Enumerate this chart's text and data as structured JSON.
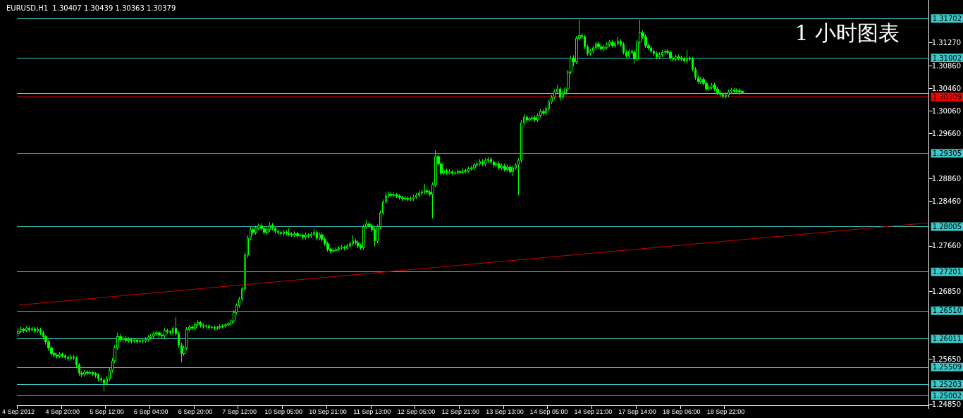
{
  "chart_data": {
    "type": "candlestick",
    "title": "EURUSD,H1  1.30407 1.30439 1.30363 1.30379",
    "annotations": [
      "1 小时图表"
    ],
    "categories": [
      "4 Sep 2012",
      null,
      null,
      null,
      null,
      null,
      null,
      null,
      null,
      null,
      null,
      null,
      null,
      null,
      null,
      null,
      "4 Sep 20:00",
      null,
      null,
      null,
      null,
      null,
      null,
      null,
      null,
      null,
      null,
      null,
      null,
      null,
      null,
      null,
      "5 Sep 12:00",
      null,
      null,
      null,
      null,
      null,
      null,
      null,
      null,
      null,
      null,
      null,
      null,
      null,
      null,
      null,
      "6 Sep 04:00",
      null,
      null,
      null,
      null,
      null,
      null,
      null,
      null,
      null,
      null,
      null,
      null,
      null,
      null,
      null,
      "6 Sep 20:00",
      null,
      null,
      null,
      null,
      null,
      null,
      null,
      null,
      null,
      null,
      null,
      null,
      null,
      null,
      null,
      "7 Sep 12:00",
      null,
      null,
      null,
      null,
      null,
      null,
      null,
      null,
      null,
      null,
      null,
      null,
      null,
      null,
      null,
      "10 Sep 05:00",
      null,
      null,
      null,
      null,
      null,
      null,
      null,
      null,
      null,
      null,
      null,
      null,
      null,
      null,
      null,
      "10 Sep 21:00",
      null,
      null,
      null,
      null,
      null,
      null,
      null,
      null,
      null,
      null,
      null,
      null,
      null,
      null,
      null,
      "11 Sep 13:00",
      null,
      null,
      null,
      null,
      null,
      null,
      null,
      null,
      null,
      null,
      null,
      null,
      null,
      null,
      null,
      "12 Sep 05:00",
      null,
      null,
      null,
      null,
      null,
      null,
      null,
      null,
      null,
      null,
      null,
      null,
      null,
      null,
      null,
      "12 Sep 21:00",
      null,
      null,
      null,
      null,
      null,
      null,
      null,
      null,
      null,
      null,
      null,
      null,
      null,
      null,
      null,
      "13 Sep 13:00",
      null,
      null,
      null,
      null,
      null,
      null,
      null,
      null,
      null,
      null,
      null,
      null,
      null,
      null,
      null,
      "14 Sep 05:00",
      null,
      null,
      null,
      null,
      null,
      null,
      null,
      null,
      null,
      null,
      null,
      null,
      null,
      null,
      null,
      "14 Sep 21:00",
      null,
      null,
      null,
      null,
      null,
      null,
      null,
      null,
      null,
      null,
      null,
      null,
      null,
      null,
      null,
      "17 Sep 14:00",
      null,
      null,
      null,
      null,
      null,
      null,
      null,
      null,
      null,
      null,
      null,
      null,
      null,
      null,
      null,
      "18 Sep 06:00",
      null,
      null,
      null,
      null,
      null,
      null,
      null,
      null,
      null,
      null,
      null,
      null,
      null,
      null,
      null,
      "18 Sep 22:00",
      null,
      null,
      null,
      null,
      null,
      null,
      null,
      null,
      null,
      null,
      null,
      null,
      null,
      null,
      null,
      null,
      null,
      null,
      null,
      null,
      null,
      null,
      null,
      null,
      null,
      null,
      null,
      null,
      null,
      null,
      null,
      null,
      null,
      null,
      null,
      null,
      null,
      null,
      null,
      null,
      null,
      null,
      null,
      null,
      null,
      null,
      null,
      null,
      null,
      null,
      null,
      null,
      null,
      null,
      null,
      null,
      null,
      null,
      null,
      null,
      null,
      null,
      null,
      null,
      null,
      null,
      null,
      null,
      null,
      null,
      null,
      null,
      null
    ],
    "ohlc": [
      [
        1.261,
        1.262,
        1.2605,
        1.2614
      ],
      [
        1.2614,
        1.2623,
        1.2611,
        1.2618
      ],
      [
        1.2618,
        1.2621,
        1.2612,
        1.2616
      ],
      [
        1.2616,
        1.2624,
        1.2613,
        1.262
      ],
      [
        1.262,
        1.2623,
        1.2613,
        1.2617
      ],
      [
        1.2617,
        1.2623,
        1.2614,
        1.2619
      ],
      [
        1.2619,
        1.2622,
        1.2611,
        1.2615
      ],
      [
        1.2615,
        1.2622,
        1.2612,
        1.2618
      ],
      [
        1.2618,
        1.2621,
        1.2608,
        1.2612
      ],
      [
        1.2612,
        1.2615,
        1.26,
        1.2605
      ],
      [
        1.2605,
        1.2608,
        1.2591,
        1.2596
      ],
      [
        1.2596,
        1.2599,
        1.258,
        1.2585
      ],
      [
        1.2585,
        1.2588,
        1.257,
        1.2575
      ],
      [
        1.2575,
        1.2578,
        1.2567,
        1.2572
      ],
      [
        1.2572,
        1.2575,
        1.2566,
        1.257
      ],
      [
        1.257,
        1.2578,
        1.2567,
        1.2574
      ],
      [
        1.2574,
        1.2577,
        1.2567,
        1.2571
      ],
      [
        1.2571,
        1.2574,
        1.2564,
        1.2568
      ],
      [
        1.2568,
        1.2571,
        1.2562,
        1.2566
      ],
      [
        1.2566,
        1.2573,
        1.2563,
        1.2569
      ],
      [
        1.2569,
        1.2572,
        1.2563,
        1.2567
      ],
      [
        1.2567,
        1.257,
        1.255,
        1.2555
      ],
      [
        1.2555,
        1.2558,
        1.2535,
        1.254
      ],
      [
        1.254,
        1.2544,
        1.2533,
        1.2538
      ],
      [
        1.2538,
        1.2546,
        1.2534,
        1.2542
      ],
      [
        1.2542,
        1.2546,
        1.2536,
        1.254
      ],
      [
        1.254,
        1.2545,
        1.2537,
        1.2541
      ],
      [
        1.2541,
        1.2544,
        1.2535,
        1.2539
      ],
      [
        1.2539,
        1.2542,
        1.2532,
        1.2537
      ],
      [
        1.2537,
        1.254,
        1.2525,
        1.253
      ],
      [
        1.253,
        1.2534,
        1.2523,
        1.2528
      ],
      [
        1.2528,
        1.2531,
        1.2508,
        1.2522
      ],
      [
        1.2522,
        1.2535,
        1.2518,
        1.253
      ],
      [
        1.253,
        1.255,
        1.2526,
        1.2545
      ],
      [
        1.2545,
        1.2567,
        1.2541,
        1.2562
      ],
      [
        1.2562,
        1.259,
        1.2558,
        1.2585
      ],
      [
        1.2585,
        1.2612,
        1.2581,
        1.2605
      ],
      [
        1.2605,
        1.261,
        1.2596,
        1.26
      ],
      [
        1.26,
        1.2606,
        1.2596,
        1.2602
      ],
      [
        1.2602,
        1.2606,
        1.2594,
        1.2598
      ],
      [
        1.2598,
        1.2604,
        1.2594,
        1.26
      ],
      [
        1.26,
        1.2603,
        1.2593,
        1.2597
      ],
      [
        1.2597,
        1.2603,
        1.2594,
        1.2599
      ],
      [
        1.2599,
        1.2602,
        1.2592,
        1.2596
      ],
      [
        1.2596,
        1.2602,
        1.2593,
        1.2598
      ],
      [
        1.2598,
        1.2601,
        1.2593,
        1.2597
      ],
      [
        1.2597,
        1.2604,
        1.2594,
        1.26
      ],
      [
        1.26,
        1.2608,
        1.2596,
        1.2604
      ],
      [
        1.2604,
        1.261,
        1.26,
        1.2606
      ],
      [
        1.2606,
        1.2614,
        1.2602,
        1.261
      ],
      [
        1.261,
        1.2616,
        1.2606,
        1.2612
      ],
      [
        1.2612,
        1.2615,
        1.2604,
        1.2608
      ],
      [
        1.2608,
        1.2611,
        1.2602,
        1.2606
      ],
      [
        1.2606,
        1.262,
        1.2602,
        1.2616
      ],
      [
        1.2616,
        1.2619,
        1.261,
        1.2614
      ],
      [
        1.2614,
        1.2617,
        1.2608,
        1.2612
      ],
      [
        1.2612,
        1.2624,
        1.2608,
        1.262
      ],
      [
        1.262,
        1.264,
        1.2606,
        1.261
      ],
      [
        1.261,
        1.2614,
        1.2585,
        1.259
      ],
      [
        1.259,
        1.2594,
        1.2559,
        1.2575
      ],
      [
        1.2575,
        1.2589,
        1.2571,
        1.2585
      ],
      [
        1.2585,
        1.2622,
        1.2581,
        1.2618
      ],
      [
        1.2618,
        1.2626,
        1.2614,
        1.2622
      ],
      [
        1.2622,
        1.2625,
        1.2616,
        1.262
      ],
      [
        1.262,
        1.2631,
        1.2616,
        1.2627
      ],
      [
        1.2627,
        1.2634,
        1.2623,
        1.263
      ],
      [
        1.263,
        1.2633,
        1.2621,
        1.2625
      ],
      [
        1.2625,
        1.2628,
        1.2619,
        1.2623
      ],
      [
        1.2623,
        1.2627,
        1.262,
        1.2624
      ],
      [
        1.2624,
        1.2627,
        1.2617,
        1.2621
      ],
      [
        1.2621,
        1.2625,
        1.2618,
        1.2622
      ],
      [
        1.2622,
        1.2625,
        1.2616,
        1.262
      ],
      [
        1.262,
        1.2624,
        1.2617,
        1.2621
      ],
      [
        1.2621,
        1.2627,
        1.2618,
        1.2623
      ],
      [
        1.2623,
        1.2627,
        1.262,
        1.2624
      ],
      [
        1.2624,
        1.2629,
        1.2621,
        1.2626
      ],
      [
        1.2626,
        1.2631,
        1.2623,
        1.2628
      ],
      [
        1.2628,
        1.2636,
        1.2624,
        1.2633
      ],
      [
        1.2633,
        1.2652,
        1.2629,
        1.2648
      ],
      [
        1.2648,
        1.2664,
        1.2644,
        1.266
      ],
      [
        1.266,
        1.2676,
        1.2656,
        1.2672
      ],
      [
        1.2672,
        1.2694,
        1.2668,
        1.269
      ],
      [
        1.269,
        1.2755,
        1.2686,
        1.275
      ],
      [
        1.275,
        1.2785,
        1.2745,
        1.278
      ],
      [
        1.278,
        1.28,
        1.2776,
        1.2795
      ],
      [
        1.2795,
        1.2799,
        1.2785,
        1.279
      ],
      [
        1.279,
        1.2802,
        1.2786,
        1.2798
      ],
      [
        1.2798,
        1.2806,
        1.2794,
        1.2802
      ],
      [
        1.2802,
        1.2806,
        1.2793,
        1.2797
      ],
      [
        1.2797,
        1.28,
        1.2786,
        1.279
      ],
      [
        1.279,
        1.2799,
        1.2786,
        1.2795
      ],
      [
        1.2795,
        1.2808,
        1.2791,
        1.2803
      ],
      [
        1.2803,
        1.2807,
        1.2794,
        1.2798
      ],
      [
        1.2798,
        1.2801,
        1.2788,
        1.2792
      ],
      [
        1.2792,
        1.2795,
        1.2786,
        1.279
      ],
      [
        1.279,
        1.2793,
        1.2784,
        1.2788
      ],
      [
        1.2788,
        1.2795,
        1.2784,
        1.2791
      ],
      [
        1.2791,
        1.2794,
        1.2785,
        1.2789
      ],
      [
        1.2789,
        1.2797,
        1.2783,
        1.2787
      ],
      [
        1.2787,
        1.279,
        1.2782,
        1.2786
      ],
      [
        1.2786,
        1.2792,
        1.2782,
        1.2788
      ],
      [
        1.2788,
        1.2791,
        1.278,
        1.2784
      ],
      [
        1.2784,
        1.2789,
        1.278,
        1.2785
      ],
      [
        1.2785,
        1.2788,
        1.2778,
        1.2782
      ],
      [
        1.2782,
        1.279,
        1.2778,
        1.2786
      ],
      [
        1.2786,
        1.2789,
        1.278,
        1.2784
      ],
      [
        1.2784,
        1.2791,
        1.278,
        1.2787
      ],
      [
        1.2787,
        1.2797,
        1.2783,
        1.279
      ],
      [
        1.279,
        1.2794,
        1.2776,
        1.278
      ],
      [
        1.278,
        1.279,
        1.2776,
        1.2786
      ],
      [
        1.2786,
        1.279,
        1.2774,
        1.2778
      ],
      [
        1.2778,
        1.2782,
        1.2766,
        1.277
      ],
      [
        1.277,
        1.2774,
        1.2756,
        1.276
      ],
      [
        1.276,
        1.2763,
        1.2753,
        1.2757
      ],
      [
        1.2757,
        1.2762,
        1.2754,
        1.2758
      ],
      [
        1.2758,
        1.2764,
        1.2755,
        1.276
      ],
      [
        1.276,
        1.2766,
        1.2757,
        1.2762
      ],
      [
        1.2762,
        1.2768,
        1.2759,
        1.2764
      ],
      [
        1.2764,
        1.2767,
        1.2758,
        1.2762
      ],
      [
        1.2762,
        1.277,
        1.2759,
        1.2766
      ],
      [
        1.2766,
        1.2774,
        1.2762,
        1.277
      ],
      [
        1.277,
        1.2785,
        1.2766,
        1.2775
      ],
      [
        1.2775,
        1.2779,
        1.2768,
        1.2772
      ],
      [
        1.2772,
        1.2776,
        1.2762,
        1.2766
      ],
      [
        1.2766,
        1.277,
        1.2759,
        1.2763
      ],
      [
        1.2763,
        1.2804,
        1.2759,
        1.28
      ],
      [
        1.28,
        1.2812,
        1.2796,
        1.2805
      ],
      [
        1.2805,
        1.2809,
        1.2798,
        1.2802
      ],
      [
        1.2802,
        1.2806,
        1.2791,
        1.2795
      ],
      [
        1.2795,
        1.2799,
        1.2765,
        1.2775
      ],
      [
        1.2775,
        1.2804,
        1.2771,
        1.28
      ],
      [
        1.28,
        1.2829,
        1.2796,
        1.2825
      ],
      [
        1.2825,
        1.2849,
        1.2821,
        1.2845
      ],
      [
        1.2845,
        1.2862,
        1.2841,
        1.2855
      ],
      [
        1.2855,
        1.2863,
        1.2851,
        1.2858
      ],
      [
        1.2858,
        1.2862,
        1.2852,
        1.2856
      ],
      [
        1.2856,
        1.2861,
        1.2853,
        1.2857
      ],
      [
        1.2857,
        1.286,
        1.2851,
        1.2855
      ],
      [
        1.2855,
        1.2858,
        1.2848,
        1.2852
      ],
      [
        1.2852,
        1.2855,
        1.2846,
        1.285
      ],
      [
        1.285,
        1.2855,
        1.2847,
        1.2851
      ],
      [
        1.2851,
        1.2854,
        1.2845,
        1.2849
      ],
      [
        1.2849,
        1.2854,
        1.2846,
        1.285
      ],
      [
        1.285,
        1.2857,
        1.2846,
        1.2853
      ],
      [
        1.2853,
        1.286,
        1.2849,
        1.2856
      ],
      [
        1.2856,
        1.2864,
        1.2852,
        1.286
      ],
      [
        1.286,
        1.2866,
        1.2856,
        1.2862
      ],
      [
        1.2862,
        1.2876,
        1.2858,
        1.2864
      ],
      [
        1.2864,
        1.2868,
        1.2858,
        1.2862
      ],
      [
        1.2862,
        1.2866,
        1.2854,
        1.2858
      ],
      [
        1.2858,
        1.2879,
        1.2815,
        1.2875
      ],
      [
        1.2875,
        1.2936,
        1.2871,
        1.2925
      ],
      [
        1.2925,
        1.2929,
        1.2908,
        1.2912
      ],
      [
        1.2912,
        1.2916,
        1.2891,
        1.2895
      ],
      [
        1.2895,
        1.2904,
        1.2891,
        1.29
      ],
      [
        1.29,
        1.2904,
        1.2892,
        1.2896
      ],
      [
        1.2896,
        1.2902,
        1.2893,
        1.2898
      ],
      [
        1.2898,
        1.2901,
        1.2891,
        1.2895
      ],
      [
        1.2895,
        1.29,
        1.2892,
        1.2896
      ],
      [
        1.2896,
        1.2902,
        1.2893,
        1.2898
      ],
      [
        1.2898,
        1.2901,
        1.2893,
        1.2897
      ],
      [
        1.2897,
        1.2904,
        1.2894,
        1.29
      ],
      [
        1.29,
        1.2903,
        1.2895,
        1.2899
      ],
      [
        1.2899,
        1.2907,
        1.2896,
        1.2903
      ],
      [
        1.2903,
        1.2909,
        1.29,
        1.2905
      ],
      [
        1.2905,
        1.2914,
        1.2901,
        1.291
      ],
      [
        1.291,
        1.2916,
        1.2906,
        1.2912
      ],
      [
        1.2912,
        1.292,
        1.2908,
        1.2916
      ],
      [
        1.2916,
        1.292,
        1.2908,
        1.2912
      ],
      [
        1.2912,
        1.2922,
        1.2908,
        1.2918
      ],
      [
        1.2918,
        1.2924,
        1.2914,
        1.292
      ],
      [
        1.292,
        1.2924,
        1.2911,
        1.2915
      ],
      [
        1.2915,
        1.2919,
        1.2906,
        1.291
      ],
      [
        1.291,
        1.2916,
        1.2906,
        1.2912
      ],
      [
        1.2912,
        1.2916,
        1.2901,
        1.2905
      ],
      [
        1.2905,
        1.2912,
        1.2901,
        1.2908
      ],
      [
        1.2908,
        1.2912,
        1.2898,
        1.2902
      ],
      [
        1.2902,
        1.291,
        1.2898,
        1.2906
      ],
      [
        1.2906,
        1.291,
        1.2894,
        1.2898
      ],
      [
        1.2898,
        1.2909,
        1.289,
        1.2905
      ],
      [
        1.2905,
        1.2914,
        1.2901,
        1.291
      ],
      [
        1.291,
        1.2922,
        1.2856,
        1.2918
      ],
      [
        1.2918,
        1.299,
        1.2914,
        1.2985
      ],
      [
        1.2985,
        1.3,
        1.2981,
        1.2995
      ],
      [
        1.2995,
        1.2999,
        1.2986,
        1.299
      ],
      [
        1.299,
        1.2996,
        1.2986,
        1.2992
      ],
      [
        1.2992,
        1.2998,
        1.2988,
        1.2994
      ],
      [
        1.2994,
        1.2998,
        1.2986,
        1.299
      ],
      [
        1.299,
        1.3002,
        1.2986,
        1.2998
      ],
      [
        1.2998,
        1.3009,
        1.2994,
        1.3005
      ],
      [
        1.3005,
        1.3009,
        1.2998,
        1.3002
      ],
      [
        1.3002,
        1.3014,
        1.2998,
        1.301
      ],
      [
        1.301,
        1.3026,
        1.3006,
        1.3022
      ],
      [
        1.3022,
        1.3034,
        1.3018,
        1.303
      ],
      [
        1.303,
        1.3044,
        1.3026,
        1.304
      ],
      [
        1.304,
        1.3052,
        1.3036,
        1.3045
      ],
      [
        1.3045,
        1.3049,
        1.3024,
        1.303
      ],
      [
        1.303,
        1.3042,
        1.3026,
        1.3038
      ],
      [
        1.3038,
        1.3049,
        1.3034,
        1.3045
      ],
      [
        1.3045,
        1.3079,
        1.3041,
        1.3075
      ],
      [
        1.3075,
        1.3104,
        1.3071,
        1.31
      ],
      [
        1.31,
        1.3105,
        1.3085,
        1.3093
      ],
      [
        1.3093,
        1.3139,
        1.3089,
        1.3135
      ],
      [
        1.3135,
        1.3168,
        1.3131,
        1.314
      ],
      [
        1.314,
        1.3144,
        1.3134,
        1.3138
      ],
      [
        1.3138,
        1.3142,
        1.3116,
        1.312
      ],
      [
        1.312,
        1.3124,
        1.3104,
        1.3108
      ],
      [
        1.3108,
        1.3116,
        1.3104,
        1.3112
      ],
      [
        1.3112,
        1.3122,
        1.3108,
        1.3118
      ],
      [
        1.3118,
        1.3129,
        1.3114,
        1.3125
      ],
      [
        1.3125,
        1.3129,
        1.3116,
        1.312
      ],
      [
        1.312,
        1.3124,
        1.3112,
        1.3116
      ],
      [
        1.3116,
        1.3123,
        1.3112,
        1.3119
      ],
      [
        1.3119,
        1.3128,
        1.3115,
        1.3124
      ],
      [
        1.3124,
        1.3132,
        1.312,
        1.3128
      ],
      [
        1.3128,
        1.3132,
        1.3118,
        1.3122
      ],
      [
        1.3122,
        1.313,
        1.3118,
        1.3126
      ],
      [
        1.3126,
        1.3138,
        1.3122,
        1.313
      ],
      [
        1.313,
        1.3134,
        1.312,
        1.3124
      ],
      [
        1.3124,
        1.3128,
        1.3106,
        1.311
      ],
      [
        1.311,
        1.3114,
        1.3099,
        1.3103
      ],
      [
        1.3103,
        1.3116,
        1.3099,
        1.3112
      ],
      [
        1.3112,
        1.3116,
        1.3106,
        1.311
      ],
      [
        1.311,
        1.3114,
        1.309,
        1.3098
      ],
      [
        1.3098,
        1.3132,
        1.3094,
        1.3128
      ],
      [
        1.3128,
        1.3168,
        1.3124,
        1.3145
      ],
      [
        1.3145,
        1.3149,
        1.3134,
        1.3138
      ],
      [
        1.3138,
        1.3142,
        1.3118,
        1.3122
      ],
      [
        1.3122,
        1.3126,
        1.3114,
        1.3118
      ],
      [
        1.3118,
        1.3122,
        1.3108,
        1.3112
      ],
      [
        1.3112,
        1.3116,
        1.3104,
        1.3108
      ],
      [
        1.3108,
        1.3112,
        1.3098,
        1.3102
      ],
      [
        1.3102,
        1.311,
        1.3098,
        1.3106
      ],
      [
        1.3106,
        1.3114,
        1.3102,
        1.311
      ],
      [
        1.311,
        1.3116,
        1.3106,
        1.3112
      ],
      [
        1.3112,
        1.3116,
        1.3106,
        1.311
      ],
      [
        1.311,
        1.3114,
        1.3096,
        1.31
      ],
      [
        1.31,
        1.3104,
        1.3094,
        1.3098
      ],
      [
        1.3098,
        1.3106,
        1.3094,
        1.3102
      ],
      [
        1.3102,
        1.3106,
        1.3096,
        1.31
      ],
      [
        1.31,
        1.3104,
        1.3094,
        1.3098
      ],
      [
        1.3098,
        1.3102,
        1.3091,
        1.3095
      ],
      [
        1.3095,
        1.3114,
        1.3091,
        1.31
      ],
      [
        1.31,
        1.3104,
        1.3094,
        1.3098
      ],
      [
        1.3098,
        1.3102,
        1.3076,
        1.308
      ],
      [
        1.308,
        1.3084,
        1.3061,
        1.3065
      ],
      [
        1.3065,
        1.3069,
        1.3054,
        1.3058
      ],
      [
        1.3058,
        1.3066,
        1.3054,
        1.3062
      ],
      [
        1.3062,
        1.3066,
        1.3051,
        1.3055
      ],
      [
        1.3055,
        1.3059,
        1.3041,
        1.3045
      ],
      [
        1.3045,
        1.3052,
        1.3041,
        1.3048
      ],
      [
        1.3048,
        1.3056,
        1.3044,
        1.3052
      ],
      [
        1.3052,
        1.3056,
        1.3041,
        1.3045
      ],
      [
        1.3045,
        1.3049,
        1.3034,
        1.3038
      ],
      [
        1.3038,
        1.3042,
        1.3031,
        1.3035
      ],
      [
        1.3035,
        1.3039,
        1.3028,
        1.3032
      ],
      [
        1.3032,
        1.3038,
        1.3028,
        1.3034
      ],
      [
        1.3034,
        1.3044,
        1.303,
        1.304
      ],
      [
        1.304,
        1.3047,
        1.3036,
        1.3043
      ],
      [
        1.3043,
        1.3047,
        1.3037,
        1.3041
      ],
      [
        1.3041,
        1.3046,
        1.3038,
        1.3042
      ],
      [
        1.3042,
        1.3046,
        1.3035,
        1.304
      ],
      [
        1.30407,
        1.30439,
        1.30363,
        1.30379
      ],
      null,
      null,
      null,
      null,
      null,
      null,
      null,
      null,
      null,
      null,
      null,
      null,
      null,
      null,
      null,
      null,
      null,
      null,
      null,
      null,
      null,
      null,
      null,
      null,
      null,
      null,
      null,
      null,
      null,
      null,
      null,
      null,
      null,
      null,
      null,
      null,
      null,
      null,
      null,
      null,
      null,
      null,
      null,
      null,
      null,
      null,
      null,
      null,
      null,
      null,
      null,
      null,
      null,
      null,
      null,
      null,
      null,
      null,
      null,
      null,
      null,
      null,
      null,
      null,
      null,
      null,
      null
    ],
    "color": "#00ff00",
    "series": [
      {
        "type": "line",
        "color": "#cc0000",
        "values": [
          1.2661,
          null,
          null,
          null,
          null,
          null,
          null,
          null,
          null,
          null,
          null,
          null,
          null,
          null,
          null,
          null,
          null,
          null,
          null,
          null,
          null,
          null,
          null,
          null,
          null,
          null,
          null,
          null,
          null,
          null,
          null,
          null,
          null,
          null,
          null,
          null,
          null,
          null,
          null,
          null,
          null,
          null,
          null,
          null,
          null,
          null,
          null,
          null,
          null,
          null,
          null,
          null,
          null,
          null,
          null,
          null,
          null,
          null,
          null,
          null,
          null,
          null,
          null,
          null,
          null,
          null,
          null,
          null,
          null,
          null,
          null,
          null,
          null,
          null,
          null,
          null,
          null,
          null,
          null,
          null,
          null,
          null,
          null,
          null,
          null,
          null,
          null,
          null,
          null,
          null,
          null,
          null,
          null,
          null,
          null,
          null,
          null,
          null,
          null,
          null,
          null,
          null,
          null,
          null,
          null,
          null,
          null,
          null,
          null,
          null,
          null,
          null,
          null,
          null,
          null,
          null,
          null,
          null,
          null,
          null,
          null,
          null,
          null,
          null,
          null,
          null,
          null,
          null,
          null,
          null,
          null,
          null,
          null,
          null,
          null,
          null,
          null,
          null,
          null,
          null,
          null,
          null,
          null,
          null,
          null,
          null,
          null,
          null,
          null,
          null,
          null,
          null,
          null,
          null,
          null,
          null,
          null,
          null,
          null,
          null,
          null,
          null,
          null,
          null,
          null,
          null,
          null,
          null,
          null,
          null,
          null,
          null,
          null,
          null,
          null,
          null,
          null,
          null,
          null,
          null,
          null,
          null,
          null,
          null,
          null,
          null,
          null,
          null,
          null,
          null,
          null,
          null,
          null,
          null,
          null,
          null,
          null,
          null,
          null,
          null,
          null,
          null,
          null,
          null,
          null,
          null,
          null,
          null,
          null,
          null,
          null,
          null,
          null,
          null,
          null,
          null,
          null,
          null,
          null,
          null,
          null,
          null,
          null,
          null,
          null,
          null,
          null,
          null,
          null,
          null,
          null,
          null,
          null,
          null,
          null,
          null,
          null,
          null,
          null,
          null,
          null,
          null,
          null,
          null,
          null,
          null,
          null,
          null,
          null,
          null,
          null,
          null,
          null,
          null,
          null,
          null,
          null,
          null,
          null,
          null,
          null,
          null,
          null,
          null,
          null,
          null,
          null,
          null,
          null,
          null,
          null,
          null,
          null,
          null,
          null,
          null,
          null,
          null,
          null,
          null,
          null,
          null,
          null,
          null,
          null,
          null,
          null,
          null,
          null,
          null,
          null,
          null,
          null,
          null,
          null,
          null,
          null,
          null,
          null,
          null,
          null,
          null,
          null,
          null,
          null,
          null,
          null,
          null,
          null,
          null,
          null,
          null,
          null,
          null,
          null,
          null,
          null,
          null,
          null,
          null,
          null,
          null,
          null,
          null,
          null,
          null,
          null,
          null,
          null,
          1.2807
        ]
      }
    ],
    "ylim": [
      1.2483,
      1.3203
    ],
    "yticks": [
      {
        "value": 1.2485,
        "label": "1.24850"
      },
      {
        "value": 1.2565,
        "label": "1.25650"
      },
      {
        "value": 1.2685,
        "label": "1.26850"
      },
      {
        "value": 1.2766,
        "label": "1.27660"
      },
      {
        "value": 1.2846,
        "label": "1.28460"
      },
      {
        "value": 1.2886,
        "label": "1.28860"
      },
      {
        "value": 1.2966,
        "label": "1.29660"
      },
      {
        "value": 1.3006,
        "label": "1.30060"
      },
      {
        "value": 1.3046,
        "label": "1.30460"
      },
      {
        "value": 1.3086,
        "label": "1.30860"
      },
      {
        "value": 1.3127,
        "label": "1.31270"
      }
    ],
    "ref_lines": [
      {
        "axis": "y",
        "value": 1.31702,
        "label": "1.31702",
        "color": "#3cc8c8"
      },
      {
        "axis": "y",
        "value": 1.31002,
        "label": "1.31002",
        "color": "#3cc8c8"
      },
      {
        "axis": "y",
        "value": 1.3038,
        "label": null,
        "color": "#c0c0c0"
      },
      {
        "axis": "y",
        "value": 1.30309,
        "label": "1.30309",
        "color": "#ff0000"
      },
      {
        "axis": "y",
        "value": 1.29305,
        "label": "1.29305",
        "color": "#3cc8c8"
      },
      {
        "axis": "y",
        "value": 1.28005,
        "label": "1.28005",
        "color": "#3cc8c8"
      },
      {
        "axis": "y",
        "value": 1.27201,
        "label": "1.27201",
        "color": "#3cc8c8"
      },
      {
        "axis": "y",
        "value": 1.2651,
        "label": "1.26510",
        "color": "#3cc8c8"
      },
      {
        "axis": "y",
        "value": 1.26011,
        "label": "1.26011",
        "color": "#3cc8c8"
      },
      {
        "axis": "y",
        "value": 1.25509,
        "label": "1.25509",
        "color": "#3cc8c8"
      },
      {
        "axis": "y",
        "value": 1.25203,
        "label": "1.25203",
        "color": "#3cc8c8"
      },
      {
        "axis": "y",
        "value": 1.25002,
        "label": "1.25002",
        "color": "#3cc8c8"
      }
    ]
  }
}
